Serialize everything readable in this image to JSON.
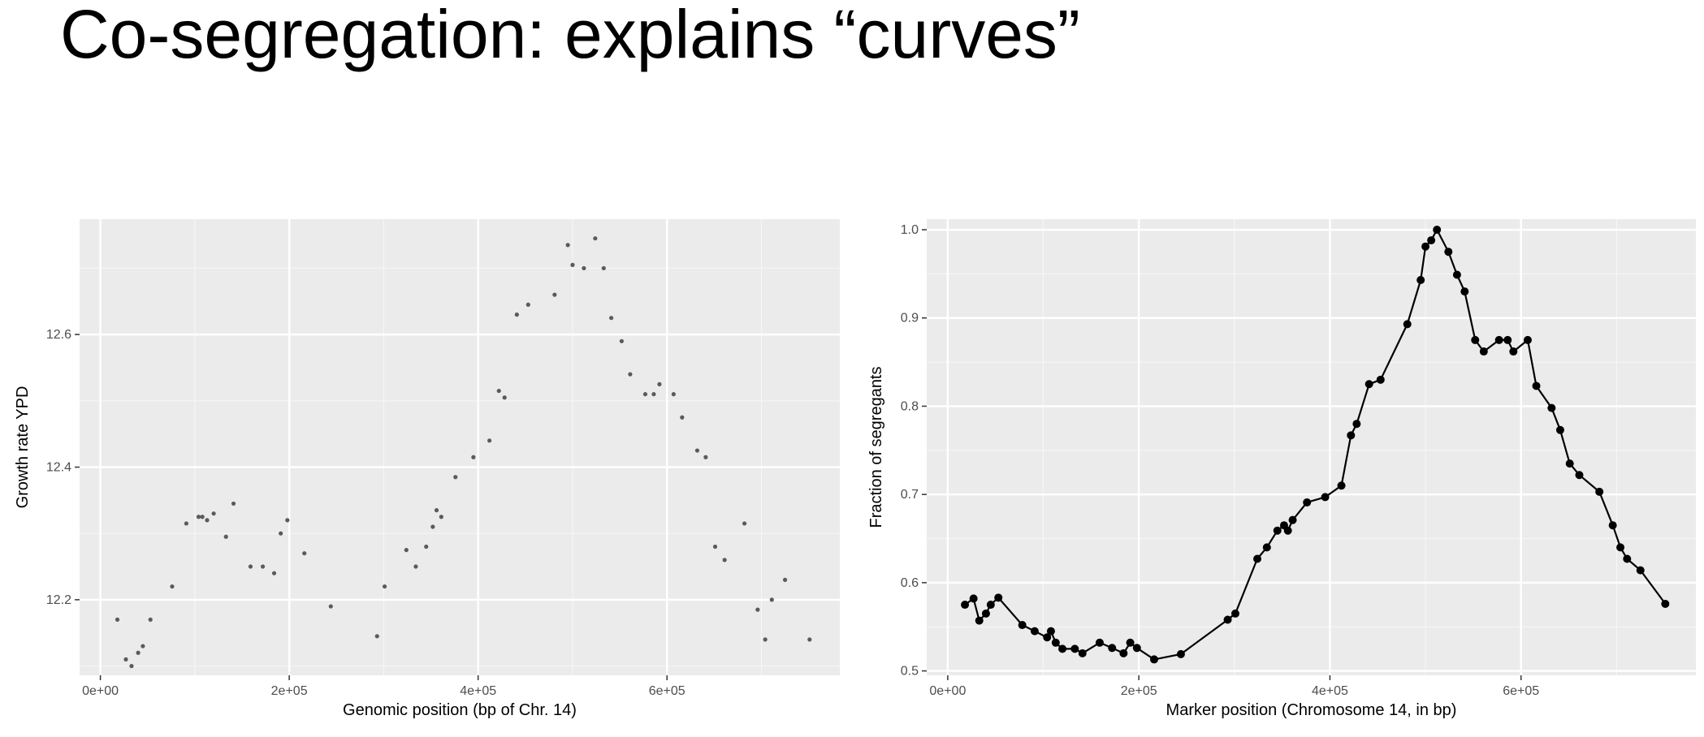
{
  "slide": {
    "title": "Co-segregation: explains “curves”"
  },
  "chart_data": [
    {
      "type": "scatter",
      "title": "",
      "xlabel": "Genomic position (bp of Chr. 14)",
      "ylabel": "Growth rate YPD",
      "xlim": [
        -22000,
        783000
      ],
      "ylim": [
        12.086,
        12.774
      ],
      "x_ticks": [
        0,
        200000,
        400000,
        600000
      ],
      "x_tick_labels": [
        "0e+00",
        "2e+05",
        "4e+05",
        "6e+05"
      ],
      "y_ticks": [
        12.2,
        12.4,
        12.6
      ],
      "y_tick_labels": [
        "12.2",
        "12.4",
        "12.6"
      ],
      "grid": true,
      "point_color": "#5a5a5a",
      "x": [
        18000,
        27000,
        33000,
        40000,
        45000,
        53000,
        76000,
        91000,
        104000,
        108000,
        113000,
        120000,
        133000,
        141000,
        159000,
        172000,
        184000,
        191000,
        198000,
        216000,
        244000,
        293000,
        301000,
        324000,
        334000,
        345000,
        352000,
        356000,
        361000,
        376000,
        395000,
        412000,
        422000,
        428000,
        441000,
        453000,
        481000,
        495000,
        500000,
        512000,
        524000,
        533000,
        541000,
        552000,
        561000,
        577000,
        586000,
        592000,
        607000,
        616000,
        632000,
        641000,
        651000,
        661000,
        682000,
        696000,
        704000,
        711000,
        725000,
        751000
      ],
      "y": [
        12.17,
        12.11,
        12.1,
        12.12,
        12.13,
        12.17,
        12.22,
        12.315,
        12.325,
        12.325,
        12.32,
        12.33,
        12.295,
        12.345,
        12.25,
        12.25,
        12.24,
        12.3,
        12.32,
        12.27,
        12.19,
        12.145,
        12.22,
        12.275,
        12.25,
        12.28,
        12.31,
        12.335,
        12.325,
        12.385,
        12.415,
        12.44,
        12.515,
        12.505,
        12.63,
        12.645,
        12.66,
        12.735,
        12.705,
        12.7,
        12.745,
        12.7,
        12.625,
        12.59,
        12.54,
        12.51,
        12.51,
        12.525,
        12.51,
        12.475,
        12.425,
        12.415,
        12.28,
        12.26,
        12.315,
        12.185,
        12.14,
        12.2,
        12.23,
        12.14
      ]
    },
    {
      "type": "line",
      "title": "",
      "xlabel": "Marker position (Chromosome 14, in bp)",
      "ylabel": "Fraction of segregants",
      "xlim": [
        -22000,
        783000
      ],
      "ylim": [
        0.495,
        1.012
      ],
      "x_ticks": [
        0,
        200000,
        400000,
        600000
      ],
      "x_tick_labels": [
        "0e+00",
        "2e+05",
        "4e+05",
        "6e+05"
      ],
      "y_ticks": [
        0.5,
        0.6,
        0.7,
        0.8,
        0.9,
        1.0
      ],
      "y_tick_labels": [
        "0.5",
        "0.6",
        "0.7",
        "0.8",
        "0.9",
        "1.0"
      ],
      "grid": true,
      "markers": true,
      "line_color": "#000000",
      "x": [
        18000,
        27000,
        33000,
        40000,
        45000,
        53000,
        78000,
        91000,
        104000,
        108000,
        113000,
        120000,
        133000,
        141000,
        159000,
        172000,
        184000,
        191000,
        198000,
        216000,
        244000,
        293000,
        301000,
        324000,
        334000,
        345000,
        352000,
        356000,
        361000,
        376000,
        395000,
        412000,
        422000,
        428000,
        441000,
        453000,
        481000,
        495000,
        500000,
        506000,
        512000,
        524000,
        533000,
        541000,
        552000,
        561000,
        577000,
        586000,
        592000,
        607000,
        616000,
        632000,
        641000,
        651000,
        661000,
        682000,
        696000,
        704000,
        711000,
        725000,
        751000
      ],
      "y": [
        0.575,
        0.582,
        0.557,
        0.565,
        0.575,
        0.583,
        0.552,
        0.545,
        0.538,
        0.545,
        0.532,
        0.525,
        0.525,
        0.52,
        0.532,
        0.526,
        0.52,
        0.532,
        0.526,
        0.513,
        0.519,
        0.558,
        0.565,
        0.627,
        0.64,
        0.659,
        0.665,
        0.659,
        0.671,
        0.691,
        0.697,
        0.71,
        0.767,
        0.78,
        0.825,
        0.83,
        0.893,
        0.943,
        0.981,
        0.988,
        1.0,
        0.975,
        0.949,
        0.93,
        0.875,
        0.862,
        0.875,
        0.875,
        0.862,
        0.875,
        0.823,
        0.798,
        0.773,
        0.735,
        0.722,
        0.703,
        0.665,
        0.64,
        0.627,
        0.614,
        0.576
      ]
    }
  ]
}
